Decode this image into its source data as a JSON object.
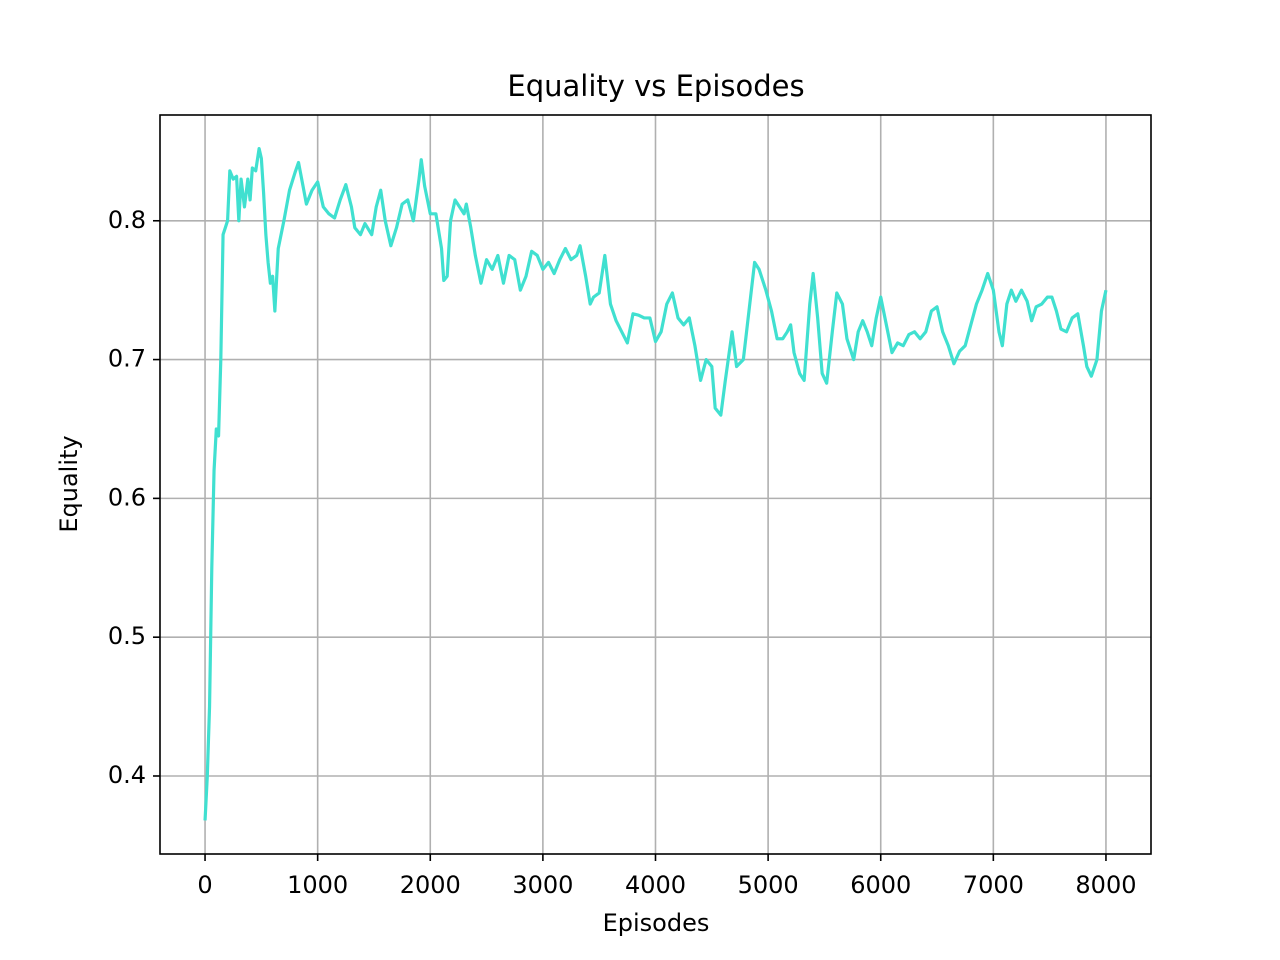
{
  "chart_data": {
    "type": "line",
    "title": "Equality vs Episodes",
    "x_label": "Episodes",
    "y_label": "Equality",
    "x": [
      0,
      20,
      40,
      60,
      80,
      100,
      120,
      140,
      160,
      180,
      200,
      220,
      250,
      280,
      300,
      320,
      350,
      380,
      400,
      420,
      450,
      480,
      500,
      520,
      540,
      560,
      580,
      600,
      620,
      650,
      700,
      750,
      800,
      830,
      870,
      900,
      950,
      1000,
      1050,
      1100,
      1150,
      1200,
      1250,
      1300,
      1330,
      1380,
      1420,
      1480,
      1520,
      1560,
      1600,
      1650,
      1700,
      1750,
      1800,
      1850,
      1900,
      1920,
      1950,
      2000,
      2050,
      2100,
      2120,
      2150,
      2180,
      2220,
      2260,
      2300,
      2320,
      2360,
      2400,
      2450,
      2500,
      2550,
      2600,
      2650,
      2700,
      2750,
      2800,
      2850,
      2900,
      2950,
      3000,
      3050,
      3100,
      3150,
      3200,
      3250,
      3300,
      3330,
      3380,
      3420,
      3450,
      3500,
      3550,
      3600,
      3650,
      3700,
      3750,
      3800,
      3850,
      3900,
      3950,
      4000,
      4050,
      4100,
      4150,
      4200,
      4250,
      4300,
      4350,
      4400,
      4450,
      4500,
      4530,
      4580,
      4620,
      4680,
      4720,
      4780,
      4830,
      4880,
      4920,
      4980,
      5030,
      5080,
      5130,
      5170,
      5200,
      5230,
      5280,
      5320,
      5370,
      5400,
      5440,
      5480,
      5520,
      5570,
      5610,
      5660,
      5700,
      5760,
      5800,
      5840,
      5880,
      5920,
      5960,
      6000,
      6050,
      6100,
      6150,
      6200,
      6250,
      6300,
      6350,
      6400,
      6450,
      6500,
      6550,
      6600,
      6650,
      6700,
      6750,
      6800,
      6850,
      6900,
      6950,
      7000,
      7050,
      7080,
      7120,
      7160,
      7200,
      7250,
      7300,
      7340,
      7380,
      7430,
      7480,
      7520,
      7560,
      7600,
      7650,
      7700,
      7750,
      7800,
      7830,
      7870,
      7920,
      7960,
      8000
    ],
    "series": [
      {
        "color": "#40e0d0",
        "values": [
          0.368,
          0.4,
          0.45,
          0.55,
          0.62,
          0.65,
          0.645,
          0.7,
          0.79,
          0.795,
          0.8,
          0.836,
          0.83,
          0.832,
          0.8,
          0.83,
          0.81,
          0.83,
          0.815,
          0.838,
          0.836,
          0.852,
          0.845,
          0.82,
          0.79,
          0.77,
          0.755,
          0.76,
          0.735,
          0.78,
          0.8,
          0.822,
          0.835,
          0.842,
          0.825,
          0.812,
          0.822,
          0.828,
          0.81,
          0.805,
          0.802,
          0.815,
          0.826,
          0.81,
          0.795,
          0.79,
          0.798,
          0.79,
          0.81,
          0.822,
          0.8,
          0.782,
          0.795,
          0.812,
          0.815,
          0.8,
          0.83,
          0.844,
          0.825,
          0.805,
          0.805,
          0.78,
          0.757,
          0.76,
          0.8,
          0.815,
          0.81,
          0.805,
          0.812,
          0.795,
          0.775,
          0.755,
          0.772,
          0.765,
          0.775,
          0.755,
          0.775,
          0.772,
          0.75,
          0.76,
          0.778,
          0.775,
          0.765,
          0.77,
          0.762,
          0.772,
          0.78,
          0.772,
          0.775,
          0.782,
          0.76,
          0.74,
          0.745,
          0.748,
          0.775,
          0.74,
          0.728,
          0.72,
          0.712,
          0.733,
          0.732,
          0.73,
          0.73,
          0.713,
          0.72,
          0.74,
          0.748,
          0.73,
          0.725,
          0.73,
          0.71,
          0.685,
          0.7,
          0.695,
          0.665,
          0.66,
          0.685,
          0.72,
          0.695,
          0.7,
          0.735,
          0.77,
          0.765,
          0.75,
          0.735,
          0.715,
          0.715,
          0.72,
          0.725,
          0.705,
          0.69,
          0.685,
          0.74,
          0.762,
          0.73,
          0.69,
          0.683,
          0.72,
          0.748,
          0.74,
          0.715,
          0.7,
          0.72,
          0.728,
          0.72,
          0.71,
          0.73,
          0.745,
          0.725,
          0.705,
          0.712,
          0.71,
          0.718,
          0.72,
          0.715,
          0.72,
          0.735,
          0.738,
          0.72,
          0.71,
          0.697,
          0.706,
          0.71,
          0.725,
          0.74,
          0.75,
          0.762,
          0.75,
          0.72,
          0.71,
          0.74,
          0.75,
          0.742,
          0.75,
          0.742,
          0.728,
          0.738,
          0.74,
          0.745,
          0.745,
          0.735,
          0.722,
          0.72,
          0.73,
          0.733,
          0.71,
          0.695,
          0.688,
          0.7,
          0.735,
          0.75
        ]
      }
    ],
    "xlim": [
      -400,
      8400
    ],
    "ylim": [
      0.3438,
      0.8762
    ],
    "xticks": [
      0,
      1000,
      2000,
      3000,
      4000,
      5000,
      6000,
      7000,
      8000
    ],
    "yticks": [
      0.4,
      0.5,
      0.6,
      0.7,
      0.8
    ],
    "grid": true
  }
}
